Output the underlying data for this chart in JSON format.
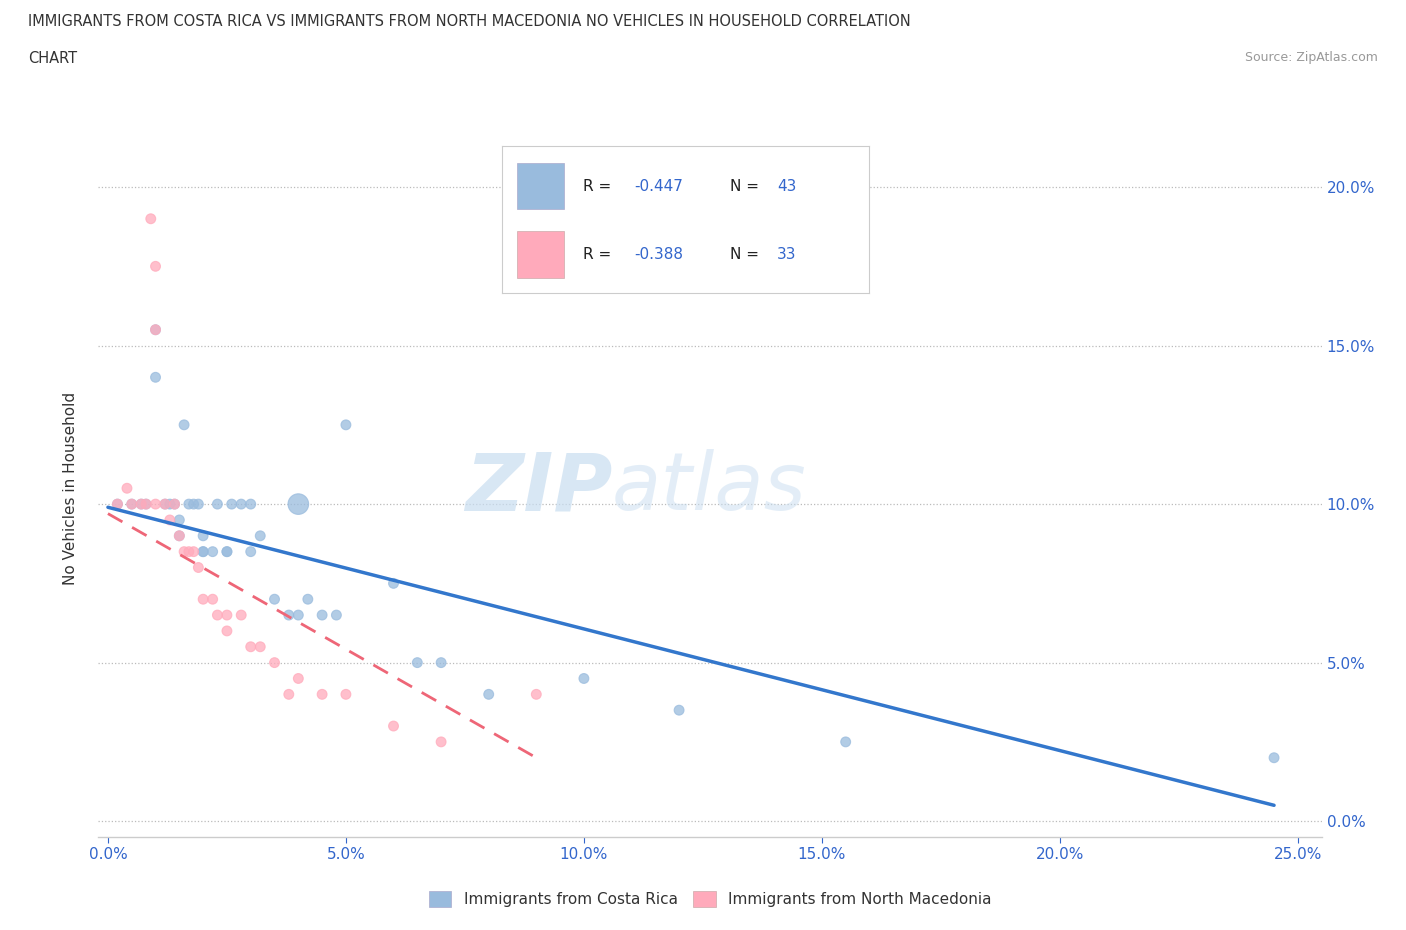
{
  "title_line1": "IMMIGRANTS FROM COSTA RICA VS IMMIGRANTS FROM NORTH MACEDONIA NO VEHICLES IN HOUSEHOLD CORRELATION",
  "title_line2": "CHART",
  "source": "Source: ZipAtlas.com",
  "xlabel_tick_vals": [
    0.0,
    0.05,
    0.1,
    0.15,
    0.2,
    0.25
  ],
  "ylabel_tick_vals": [
    0.0,
    0.05,
    0.1,
    0.15,
    0.2
  ],
  "xlim": [
    -0.002,
    0.255
  ],
  "ylim": [
    -0.005,
    0.215
  ],
  "ylabel": "No Vehicles in Household",
  "legend_labels": [
    "Immigrants from Costa Rica",
    "Immigrants from North Macedonia"
  ],
  "legend_r1": "R = -0.447",
  "legend_n1": "N = 43",
  "legend_r2": "R = -0.388",
  "legend_n2": "N = 33",
  "color_blue": "#99BBDD",
  "color_pink": "#FFAABB",
  "color_line_blue": "#3377CC",
  "color_line_pink": "#EE6677",
  "watermark_zip": "ZIP",
  "watermark_atlas": "atlas",
  "blue_scatter_x": [
    0.002,
    0.005,
    0.007,
    0.008,
    0.01,
    0.01,
    0.012,
    0.013,
    0.014,
    0.015,
    0.015,
    0.016,
    0.017,
    0.018,
    0.019,
    0.02,
    0.02,
    0.02,
    0.022,
    0.023,
    0.025,
    0.025,
    0.026,
    0.028,
    0.03,
    0.03,
    0.032,
    0.035,
    0.038,
    0.04,
    0.04,
    0.042,
    0.045,
    0.048,
    0.05,
    0.06,
    0.065,
    0.07,
    0.08,
    0.1,
    0.12,
    0.155,
    0.245
  ],
  "blue_scatter_y": [
    0.1,
    0.1,
    0.1,
    0.1,
    0.155,
    0.14,
    0.1,
    0.1,
    0.1,
    0.095,
    0.09,
    0.125,
    0.1,
    0.1,
    0.1,
    0.09,
    0.085,
    0.085,
    0.085,
    0.1,
    0.085,
    0.085,
    0.1,
    0.1,
    0.085,
    0.1,
    0.09,
    0.07,
    0.065,
    0.065,
    0.1,
    0.07,
    0.065,
    0.065,
    0.125,
    0.075,
    0.05,
    0.05,
    0.04,
    0.045,
    0.035,
    0.025,
    0.02
  ],
  "blue_scatter_size": [
    50,
    50,
    50,
    50,
    50,
    50,
    50,
    50,
    50,
    50,
    50,
    50,
    50,
    50,
    50,
    50,
    50,
    50,
    50,
    50,
    50,
    50,
    50,
    50,
    50,
    50,
    50,
    50,
    50,
    50,
    220,
    50,
    50,
    50,
    50,
    50,
    50,
    50,
    50,
    50,
    50,
    50,
    50
  ],
  "pink_scatter_x": [
    0.002,
    0.004,
    0.005,
    0.007,
    0.008,
    0.009,
    0.01,
    0.01,
    0.01,
    0.012,
    0.013,
    0.014,
    0.015,
    0.016,
    0.017,
    0.018,
    0.019,
    0.02,
    0.022,
    0.023,
    0.025,
    0.025,
    0.028,
    0.03,
    0.032,
    0.035,
    0.038,
    0.04,
    0.045,
    0.05,
    0.06,
    0.07,
    0.09
  ],
  "pink_scatter_y": [
    0.1,
    0.105,
    0.1,
    0.1,
    0.1,
    0.19,
    0.155,
    0.175,
    0.1,
    0.1,
    0.095,
    0.1,
    0.09,
    0.085,
    0.085,
    0.085,
    0.08,
    0.07,
    0.07,
    0.065,
    0.065,
    0.06,
    0.065,
    0.055,
    0.055,
    0.05,
    0.04,
    0.045,
    0.04,
    0.04,
    0.03,
    0.025,
    0.04
  ],
  "pink_scatter_size": [
    50,
    50,
    50,
    50,
    50,
    50,
    50,
    50,
    50,
    50,
    50,
    50,
    50,
    50,
    50,
    50,
    50,
    50,
    50,
    50,
    50,
    50,
    50,
    50,
    50,
    50,
    50,
    50,
    50,
    50,
    50,
    50,
    50
  ],
  "blue_trend_x": [
    0.0,
    0.245
  ],
  "blue_trend_y": [
    0.099,
    0.005
  ],
  "pink_trend_x": [
    0.0,
    0.09
  ],
  "pink_trend_y": [
    0.097,
    0.02
  ]
}
